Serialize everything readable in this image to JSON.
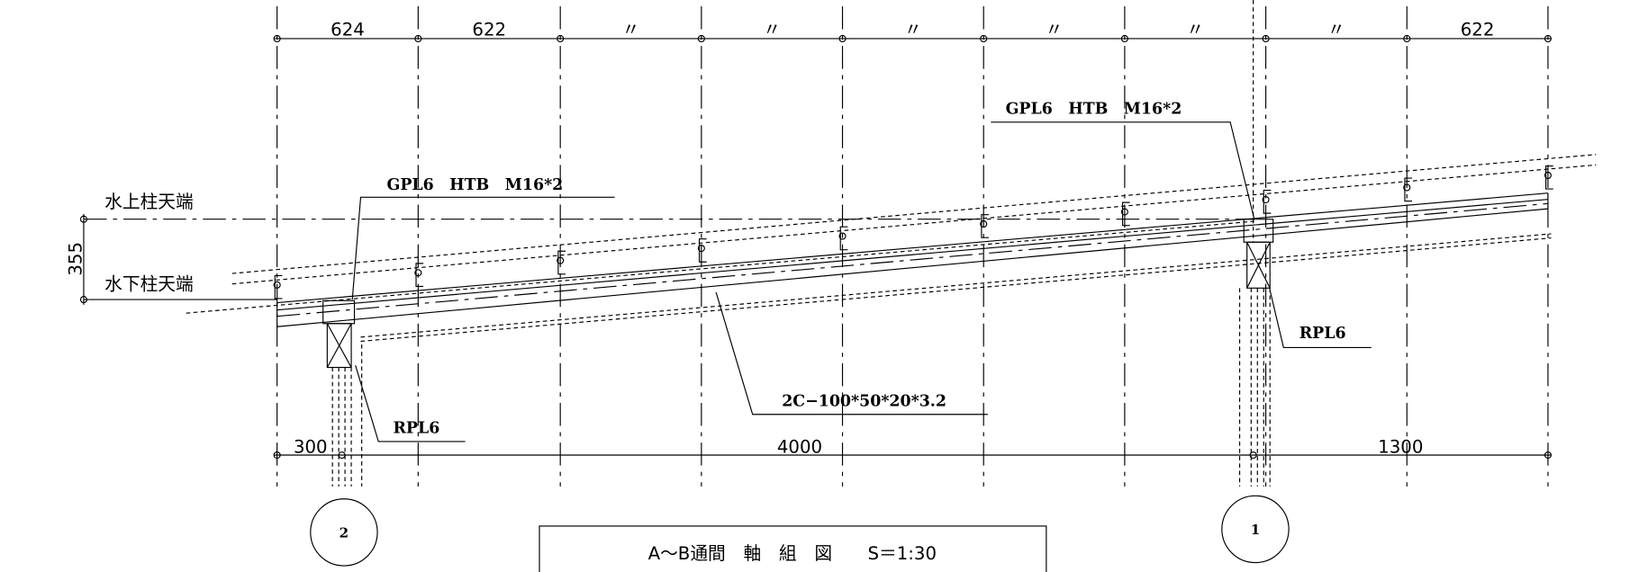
{
  "top_dimensions": [
    "624",
    "622",
    "〃",
    "〃",
    "〃",
    "〃",
    "〃",
    "〃",
    "622"
  ],
  "levels": {
    "upper": "水上柱天端",
    "lower": "水下柱天端",
    "height": "355"
  },
  "callouts": {
    "gpl_left": "GPL6　HTB　M16*2",
    "gpl_right": "GPL6　HTB　M16*2",
    "rpl_left": "RPL6",
    "rpl_right": "RPL6",
    "member": "2C−100*50*20*3.2"
  },
  "bottom_dimensions": [
    "300",
    "4000",
    "1300"
  ],
  "grid_labels": [
    "2",
    "1"
  ],
  "title": "A～B通間　軸　組　図　　S＝1:30"
}
